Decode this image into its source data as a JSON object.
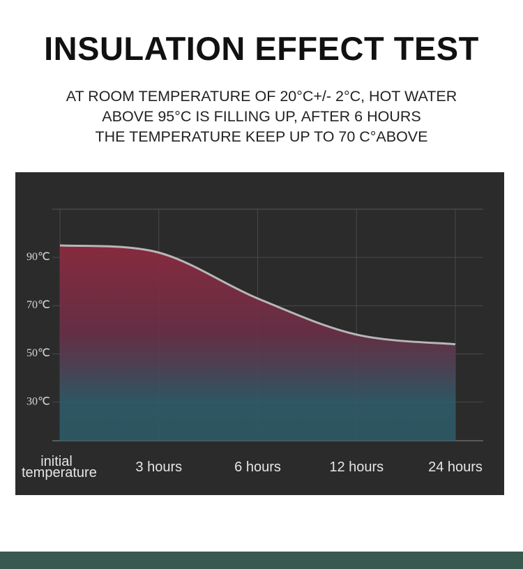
{
  "chart_data": {
    "type": "area",
    "title": "INSULATION EFFECT TEST",
    "subtitle": [
      "AT ROOM TEMPERATURE OF 20°C+/- 2°C, HOT WATER",
      "ABOVE 95°C IS FILLING UP, AFTER 6 HOURS",
      "THE TEMPERATURE KEEP UP TO 70 C°ABOVE"
    ],
    "categories": [
      "initial temperature",
      "3 hours",
      "6 hours",
      "12 hours",
      "24 hours"
    ],
    "values": [
      95,
      92,
      73,
      58,
      54
    ],
    "color": "#b7b7b7",
    "ylim": [
      14,
      110
    ],
    "yticks": [
      {
        "value": 30,
        "label": "30℃"
      },
      {
        "value": 50,
        "label": "50℃"
      },
      {
        "value": 70,
        "label": "70℃"
      },
      {
        "value": 90,
        "label": "90℃"
      }
    ],
    "grid": true
  }
}
